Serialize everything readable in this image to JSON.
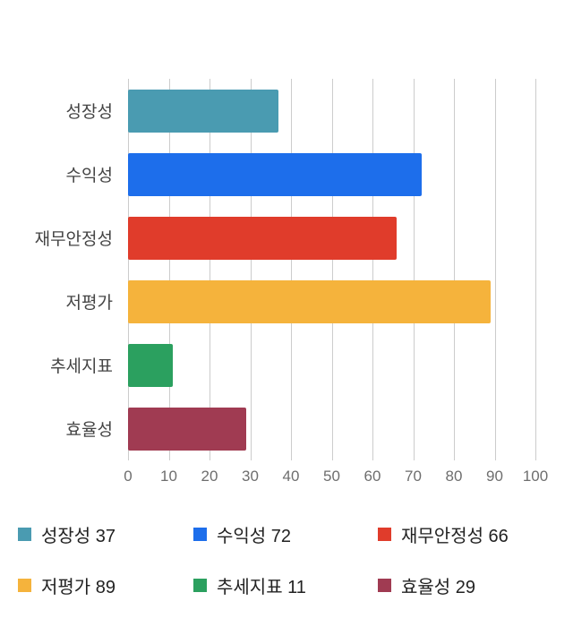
{
  "chart_data": {
    "type": "bar",
    "orientation": "horizontal",
    "title": "",
    "xlabel": "",
    "ylabel": "",
    "categories": [
      "성장성",
      "수익성",
      "재무안정성",
      "저평가",
      "추세지표",
      "효율성"
    ],
    "values": [
      37,
      72,
      66,
      89,
      11,
      29
    ],
    "colors": [
      "#4A9BB1",
      "#1D6EEB",
      "#E03C2B",
      "#F5B33C",
      "#2BA05F",
      "#A03B52"
    ],
    "xlim": [
      0,
      100
    ],
    "x_ticks": [
      0,
      10,
      20,
      30,
      40,
      50,
      60,
      70,
      80,
      90,
      100
    ],
    "grid": true,
    "gridline_color": "#cccccc",
    "legend_position": "bottom",
    "legend_items": [
      {
        "label": "성장성 37",
        "color": "#4A9BB1"
      },
      {
        "label": "수익성 72",
        "color": "#1D6EEB"
      },
      {
        "label": "재무안정성 66",
        "color": "#E03C2B"
      },
      {
        "label": "저평가 89",
        "color": "#F5B33C"
      },
      {
        "label": "추세지표 11",
        "color": "#2BA05F"
      },
      {
        "label": "효율성 29",
        "color": "#A03B52"
      }
    ]
  }
}
